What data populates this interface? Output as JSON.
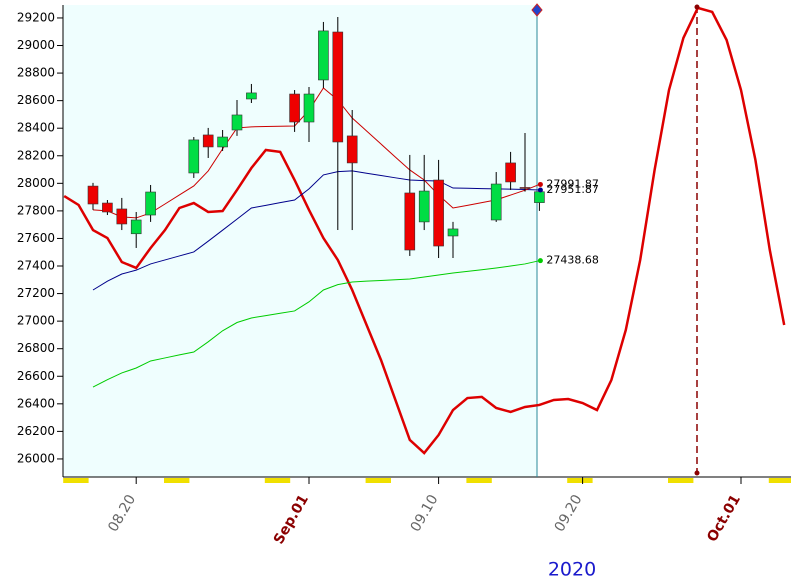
{
  "chart_data": {
    "type": "candlestick",
    "year_label": "2020",
    "categories": [
      null,
      null,
      null,
      null,
      null,
      "08.20",
      null,
      null,
      null,
      null,
      null,
      null,
      null,
      null,
      null,
      null,
      null,
      "Sep.01",
      null,
      null,
      null,
      null,
      null,
      null,
      null,
      null,
      "09.10",
      null,
      null,
      null,
      null,
      null,
      null,
      null,
      null,
      null,
      "09.20",
      null,
      null,
      null,
      null,
      null,
      null,
      null,
      null,
      null,
      null,
      "Oct.01",
      null,
      null,
      null
    ],
    "month_labels": [
      "Sep.01",
      "Oct.01"
    ],
    "candles": {
      "up_color": "#00dd44",
      "down_color": "#ee0000",
      "open": [
        null,
        null,
        27980,
        27857,
        27814,
        27634,
        27770,
        null,
        null,
        28075,
        28351,
        28264,
        28387,
        28612,
        null,
        null,
        28648,
        28445,
        28750,
        29098,
        28344,
        null,
        null,
        null,
        27930,
        27720,
        28024,
        27618,
        null,
        null,
        27734,
        28148,
        27970,
        27860,
        null,
        null,
        null,
        null,
        null,
        null,
        null,
        null,
        null,
        null,
        null,
        null,
        null,
        null,
        null,
        null,
        null
      ],
      "high": [
        null,
        null,
        28003,
        27879,
        27894,
        27792,
        27988,
        null,
        null,
        28336,
        28402,
        28387,
        28605,
        28721,
        null,
        null,
        28677,
        28699,
        29171,
        29207,
        28532,
        null,
        null,
        null,
        28206,
        28206,
        28170,
        27720,
        null,
        null,
        28082,
        28228,
        28365,
        27960,
        null,
        null,
        null,
        null,
        null,
        null,
        null,
        null,
        null,
        null,
        null,
        null,
        null,
        null,
        null,
        null,
        null
      ],
      "low": [
        null,
        null,
        27807,
        27770,
        27661,
        27531,
        27720,
        null,
        null,
        28039,
        28184,
        28235,
        28344,
        28583,
        null,
        null,
        28373,
        28300,
        28692,
        27661,
        27661,
        null,
        null,
        null,
        27473,
        27661,
        27458,
        27458,
        null,
        null,
        27720,
        27952,
        27940,
        27800,
        null,
        null,
        null,
        null,
        null,
        null,
        null,
        null,
        null,
        null,
        null,
        null,
        null,
        null,
        null,
        null,
        null
      ],
      "close": [
        null,
        null,
        27850,
        27792,
        27705,
        27734,
        27937,
        null,
        null,
        28315,
        28264,
        28336,
        28496,
        28656,
        null,
        null,
        28445,
        28648,
        29106,
        28300,
        28148,
        null,
        null,
        null,
        27516,
        27944,
        27545,
        27669,
        null,
        null,
        27995,
        28010,
        27965,
        27938.85,
        null,
        null,
        null,
        null,
        null,
        null,
        null,
        null,
        null,
        null,
        null,
        null,
        null,
        null,
        null,
        null,
        null
      ]
    },
    "series": [
      {
        "color": "#dd0000",
        "width": 2.5,
        "values": [
          27908,
          27843,
          27661,
          27603,
          27429,
          27386,
          27531,
          27661,
          27821,
          27857,
          27792,
          27799,
          27952,
          28111,
          28242,
          28228,
          28024,
          27807,
          27603,
          27444,
          27226,
          26972,
          26718,
          26428,
          26138,
          26043,
          26174,
          26355,
          26442,
          26450,
          26370,
          26341,
          26377,
          26392,
          26428,
          26435,
          26406,
          26355,
          26573,
          26936,
          27444,
          28097,
          28677,
          29055,
          29273,
          29244,
          29040,
          28677,
          28170,
          27516,
          26972
        ]
      },
      {
        "color": "#00cc00",
        "width": 1,
        "end_label": true,
        "values": [
          null,
          null,
          26522,
          26575,
          26624,
          26660,
          26711,
          26733,
          26755,
          26776,
          26850,
          26930,
          26990,
          27023,
          27040,
          27057,
          27074,
          27140,
          27226,
          27265,
          27284,
          27290,
          27295,
          27300,
          27306,
          27320,
          27335,
          27349,
          27361,
          27373,
          27386,
          27400,
          27415,
          27438.68,
          null,
          null,
          null,
          null,
          null,
          null,
          null,
          null,
          null,
          null,
          null,
          null,
          null,
          null,
          null,
          null,
          null
        ]
      },
      {
        "color": "#00008b",
        "width": 1,
        "end_label": true,
        "values": [
          null,
          null,
          27226,
          27290,
          27342,
          27370,
          27415,
          27444,
          27473,
          27502,
          27580,
          27660,
          27740,
          27821,
          27840,
          27860,
          27879,
          27960,
          28061,
          28085,
          28090,
          28073,
          28057,
          28040,
          28024,
          28020,
          28017,
          27966,
          27964,
          27962,
          27960,
          27958,
          27955,
          27951.87,
          null,
          null,
          null,
          null,
          null,
          null,
          null,
          null,
          null,
          null,
          null,
          null,
          null,
          null,
          null,
          null,
          null
        ]
      },
      {
        "color": "#cc0000",
        "width": 1,
        "end_label": true,
        "values": [
          null,
          null,
          27807,
          27800,
          27756,
          27749,
          27785,
          27850,
          27916,
          27981,
          28090,
          28250,
          28402,
          28410,
          28412,
          28414,
          28416,
          28530,
          28692,
          28605,
          28474,
          28380,
          28285,
          28190,
          28097,
          28024,
          27915,
          27821,
          27840,
          27860,
          27880,
          27915,
          27950,
          27991.87,
          null,
          null,
          null,
          null,
          null,
          null,
          null,
          null,
          null,
          null,
          null,
          null,
          null,
          null,
          null,
          null,
          null
        ]
      }
    ],
    "ylim": [
      25869,
      29294
    ],
    "yticks": [
      26000,
      26200,
      26400,
      26600,
      26800,
      27000,
      27200,
      27400,
      27600,
      27800,
      28000,
      28200,
      28400,
      28600,
      28800,
      29000,
      29200
    ]
  }
}
